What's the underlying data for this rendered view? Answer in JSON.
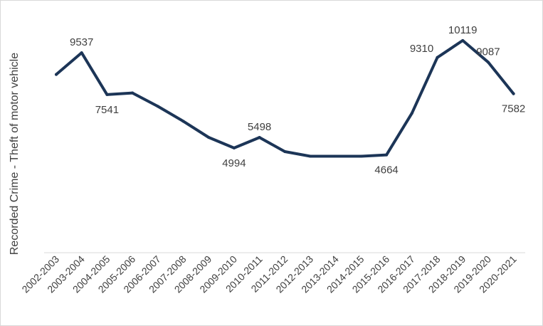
{
  "chart_data": {
    "type": "line",
    "title": "",
    "xlabel": "",
    "ylabel": "Recorded Crime - Theft of motor vehicle",
    "categories": [
      "2002-2003",
      "2003-2004",
      "2004-2005",
      "2005-2006",
      "2006-2007",
      "2007-2008",
      "2008-2009",
      "2009-2010",
      "2010-2011",
      "2011-2012",
      "2012-2013",
      "2013-2014",
      "2014-2015",
      "2015-2016",
      "2016-2017",
      "2017-2018",
      "2018-2019",
      "2019-2020",
      "2020-2021"
    ],
    "series": [
      {
        "values": [
          8500,
          9537,
          7541,
          7620,
          6980,
          6270,
          5500,
          4994,
          5498,
          4820,
          4600,
          4600,
          4600,
          4664,
          6650,
          9310,
          10119,
          9087,
          7582
        ]
      }
    ],
    "data_labels": [
      {
        "index": 1,
        "text": "9537",
        "position": "above"
      },
      {
        "index": 2,
        "text": "7541",
        "position": "below"
      },
      {
        "index": 7,
        "text": "4994",
        "position": "below"
      },
      {
        "index": 8,
        "text": "5498",
        "position": "above"
      },
      {
        "index": 13,
        "text": "4664",
        "position": "below"
      },
      {
        "index": 15,
        "text": "9310",
        "position": "above-left"
      },
      {
        "index": 16,
        "text": "10119",
        "position": "above"
      },
      {
        "index": 17,
        "text": "9087",
        "position": "above"
      },
      {
        "index": 18,
        "text": "7582",
        "position": "below"
      }
    ],
    "ylim": [
      0,
      11000
    ],
    "grid": false,
    "legend": "none",
    "colors": {
      "line": "#1c3557",
      "axis": "#d9d9d9",
      "text": "#404040"
    }
  }
}
